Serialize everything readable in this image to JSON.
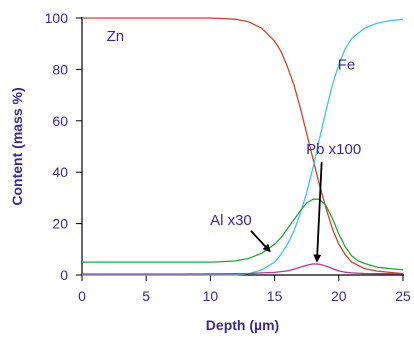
{
  "chart_data": {
    "type": "line",
    "xlabel": "Depth (µm)",
    "ylabel": "Content (mass %)",
    "xlim": [
      0,
      25
    ],
    "ylim": [
      0,
      100
    ],
    "xticks": [
      "0",
      "5",
      "10",
      "15",
      "20",
      "25"
    ],
    "yticks": [
      "0",
      "20",
      "40",
      "60",
      "80",
      "100"
    ],
    "grid": false,
    "series": [
      {
        "name": "Zn",
        "color": "#c8462c",
        "x": [
          0,
          2,
          4,
          6,
          8,
          10,
          11,
          12,
          13,
          14,
          15,
          15.5,
          16,
          16.5,
          17,
          17.5,
          18,
          18.5,
          19,
          19.5,
          20,
          20.5,
          21,
          22,
          23,
          24,
          25
        ],
        "y": [
          100,
          100,
          100,
          100,
          100,
          100,
          99.8,
          99.5,
          98.5,
          96,
          91,
          87,
          81,
          74,
          65,
          55,
          45,
          35,
          26,
          18,
          12,
          8,
          5,
          2.5,
          1.5,
          1,
          0.5
        ]
      },
      {
        "name": "Fe",
        "color": "#3fc4e4",
        "x": [
          0,
          2,
          4,
          6,
          8,
          10,
          12,
          13,
          14,
          15,
          15.5,
          16,
          16.5,
          17,
          17.5,
          18,
          18.5,
          19,
          19.5,
          20,
          20.5,
          21,
          22,
          23,
          24,
          25
        ],
        "y": [
          0,
          0,
          0,
          0,
          0,
          0,
          0,
          0.5,
          2,
          5,
          8,
          12,
          17,
          24,
          32,
          42,
          53,
          64,
          74,
          82,
          88,
          92,
          96,
          98,
          99,
          99.5
        ]
      },
      {
        "name": "Al x30",
        "color": "#23a63a",
        "x": [
          0,
          2,
          4,
          6,
          8,
          10,
          11,
          12,
          13,
          14,
          15,
          15.5,
          16,
          16.5,
          17,
          17.5,
          18,
          18.5,
          19,
          19.5,
          20,
          20.5,
          21,
          21.5,
          22,
          23,
          24,
          25
        ],
        "y": [
          5,
          5,
          5,
          5,
          5,
          5,
          5.2,
          5.5,
          6.5,
          8.5,
          12,
          14.5,
          18,
          21.5,
          25,
          28,
          29.5,
          29.5,
          27,
          22,
          16,
          11,
          7.5,
          5.5,
          4.5,
          3,
          2.5,
          2
        ]
      },
      {
        "name": "Pb x100",
        "color": "#b23a8c",
        "x": [
          0,
          4,
          8,
          12,
          13,
          14,
          15,
          16,
          16.5,
          17,
          17.5,
          18,
          18.5,
          19,
          19.5,
          20,
          20.5,
          21,
          22,
          23,
          24,
          25
        ],
        "y": [
          0.4,
          0.4,
          0.4,
          0.5,
          0.6,
          0.8,
          1,
          1.6,
          2.2,
          3,
          3.8,
          4.3,
          4.2,
          3.5,
          2.5,
          1.6,
          1.1,
          0.8,
          0.6,
          0.5,
          0.5,
          0.5
        ]
      }
    ],
    "annotations": [
      {
        "text": "Zn",
        "label_x": 2.6,
        "label_y": 91,
        "arrow": false
      },
      {
        "text": "Fe",
        "label_x": 20.6,
        "label_y": 80,
        "arrow": false
      },
      {
        "text": "Pb x100",
        "label_x": 19.6,
        "label_y": 47,
        "arrow": true,
        "arrow_to_x": 18.3,
        "arrow_to_y": 5.6
      },
      {
        "text": "Al x30",
        "label_x": 11.6,
        "label_y": 19.5,
        "arrow": true,
        "arrow_to_x": 14.6,
        "arrow_to_y": 9.4
      }
    ]
  }
}
